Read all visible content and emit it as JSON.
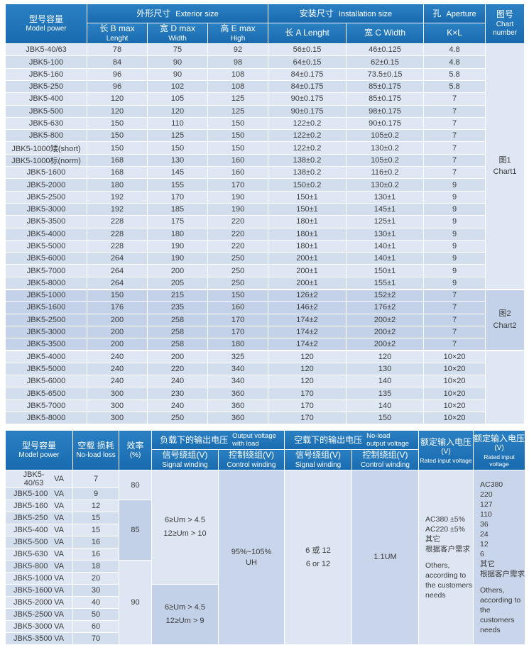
{
  "colors": {
    "header_blue_top": "#2a80c3",
    "header_blue_bot": "#196aae",
    "row_light": "#dee7f3",
    "row_alt": "#d2deee",
    "group2_row": "#c3d2e9",
    "block_light": "#dde6f2",
    "block_mid": "#c8d5ea",
    "block_dark": "#c2d1e8",
    "text_dark": "#3b3b3b"
  },
  "top_table": {
    "header": {
      "model_zh": "型号容量",
      "model_en": "Model power",
      "exterior_zh": "外形尺寸",
      "exterior_en": "Exterior size",
      "install_zh": "安装尺寸",
      "install_en": "Installation size",
      "aperture_zh": "孔",
      "aperture_en": "Aperture",
      "chart_zh": "图号",
      "chart_en": "Chart number",
      "col_b_zh": "长  B max",
      "col_b_en": "Lenght",
      "col_d_zh": "宽  D max",
      "col_d_en": "Width",
      "col_e_zh": "高  E max",
      "col_e_en": "High",
      "col_a": "长  A  Lenght",
      "col_c": "宽  C  Width",
      "col_kl": "K×L"
    },
    "groups": [
      {
        "chart_zh": "图1",
        "chart_en": "Chart1",
        "rows": [
          {
            "model": "JBK5-40/63",
            "b": "78",
            "d": "75",
            "e": "92",
            "a": "56±0.15",
            "c": "46±0.125",
            "kl": "4.8"
          },
          {
            "model": "JBK5-100",
            "b": "84",
            "d": "90",
            "e": "98",
            "a": "64±0.15",
            "c": "62±0.15",
            "kl": "4.8"
          },
          {
            "model": "JBK5-160",
            "b": "96",
            "d": "90",
            "e": "108",
            "a": "84±0.175",
            "c": "73.5±0.15",
            "kl": "5.8"
          },
          {
            "model": "JBK5-250",
            "b": "96",
            "d": "102",
            "e": "108",
            "a": "84±0.175",
            "c": "85±0.175",
            "kl": "5.8"
          },
          {
            "model": "JBK5-400",
            "b": "120",
            "d": "105",
            "e": "125",
            "a": "90±0.175",
            "c": "85±0.175",
            "kl": "7"
          },
          {
            "model": "JBK5-500",
            "b": "120",
            "d": "120",
            "e": "125",
            "a": "90±0.175",
            "c": "98±0.175",
            "kl": "7"
          },
          {
            "model": "JBK5-630",
            "b": "150",
            "d": "110",
            "e": "150",
            "a": "122±0.2",
            "c": "90±0.175",
            "kl": "7"
          },
          {
            "model": "JBK5-800",
            "b": "150",
            "d": "125",
            "e": "150",
            "a": "122±0.2",
            "c": "105±0.2",
            "kl": "7"
          },
          {
            "model": "JBK5-1000矮(short)",
            "b": "150",
            "d": "150",
            "e": "150",
            "a": "122±0.2",
            "c": "130±0.2",
            "kl": "7"
          },
          {
            "model": "JBK5-1000标(norm)",
            "b": "168",
            "d": "130",
            "e": "160",
            "a": "138±0.2",
            "c": "105±0.2",
            "kl": "7"
          },
          {
            "model": "JBK5-1600",
            "b": "168",
            "d": "145",
            "e": "160",
            "a": "138±0.2",
            "c": "116±0.2",
            "kl": "7"
          },
          {
            "model": "JBK5-2000",
            "b": "180",
            "d": "155",
            "e": "170",
            "a": "150±0.2",
            "c": "130±0.2",
            "kl": "9"
          },
          {
            "model": "JBK5-2500",
            "b": "192",
            "d": "170",
            "e": "190",
            "a": "150±1",
            "c": "130±1",
            "kl": "9"
          },
          {
            "model": "JBK5-3000",
            "b": "192",
            "d": "185",
            "e": "190",
            "a": "150±1",
            "c": "145±1",
            "kl": "9"
          },
          {
            "model": "JBK5-3500",
            "b": "228",
            "d": "175",
            "e": "220",
            "a": "180±1",
            "c": "125±1",
            "kl": "9"
          },
          {
            "model": "JBK5-4000",
            "b": "228",
            "d": "180",
            "e": "220",
            "a": "180±1",
            "c": "130±1",
            "kl": "9"
          },
          {
            "model": "JBK5-5000",
            "b": "228",
            "d": "190",
            "e": "220",
            "a": "180±1",
            "c": "140±1",
            "kl": "9"
          },
          {
            "model": "JBK5-6000",
            "b": "264",
            "d": "190",
            "e": "250",
            "a": "200±1",
            "c": "140±1",
            "kl": "9"
          },
          {
            "model": "JBK5-7000",
            "b": "264",
            "d": "200",
            "e": "250",
            "a": "200±1",
            "c": "150±1",
            "kl": "9"
          },
          {
            "model": "JBK5-8000",
            "b": "264",
            "d": "205",
            "e": "250",
            "a": "200±1",
            "c": "155±1",
            "kl": "9"
          }
        ]
      },
      {
        "chart_zh": "图2",
        "chart_en": "Chart2",
        "rows": [
          {
            "model": "JBK5-1000",
            "b": "150",
            "d": "215",
            "e": "150",
            "a": "126±2",
            "c": "152±2",
            "kl": "7"
          },
          {
            "model": "JBK5-1600",
            "b": "176",
            "d": "235",
            "e": "160",
            "a": "146±2",
            "c": "176±2",
            "kl": "7"
          },
          {
            "model": "JBK5-2500",
            "b": "200",
            "d": "258",
            "e": "170",
            "a": "174±2",
            "c": "200±2",
            "kl": "7"
          },
          {
            "model": "JBK5-3000",
            "b": "200",
            "d": "258",
            "e": "170",
            "a": "174±2",
            "c": "200±2",
            "kl": "7"
          },
          {
            "model": "JBK5-3500",
            "b": "200",
            "d": "258",
            "e": "180",
            "a": "174±2",
            "c": "200±2",
            "kl": "7"
          }
        ]
      },
      {
        "chart_zh": "",
        "chart_en": "",
        "rows": [
          {
            "model": "JBK5-4000",
            "b": "240",
            "d": "200",
            "e": "325",
            "a": "120",
            "c": "120",
            "kl": "10×20"
          },
          {
            "model": "JBK5-5000",
            "b": "240",
            "d": "220",
            "e": "340",
            "a": "120",
            "c": "130",
            "kl": "10×20"
          },
          {
            "model": "JBK5-6000",
            "b": "240",
            "d": "240",
            "e": "340",
            "a": "120",
            "c": "140",
            "kl": "10×20"
          },
          {
            "model": "JBK5-6500",
            "b": "300",
            "d": "230",
            "e": "360",
            "a": "170",
            "c": "135",
            "kl": "10×20"
          },
          {
            "model": "JBK5-7000",
            "b": "300",
            "d": "240",
            "e": "360",
            "a": "170",
            "c": "140",
            "kl": "10×20"
          },
          {
            "model": "JBK5-8000",
            "b": "300",
            "d": "250",
            "e": "360",
            "a": "170",
            "c": "150",
            "kl": "10×20"
          }
        ]
      }
    ]
  },
  "bottom_table": {
    "header": {
      "model_zh": "型号容量",
      "model_en": "Model power",
      "noload_zh": "空载 损耗",
      "noload_en": "No-load loss",
      "eff_zh": "效率",
      "eff_en": "(%)",
      "load_out_zh": "负载下的输出电压",
      "load_out_en1": "Output voltage",
      "load_out_en2": "with load",
      "noload_out_zh": "空载下的输出电压",
      "noload_out_en1": "No-load",
      "noload_out_en2": "output voltage",
      "signal_zh": "信号绕组(V)",
      "signal_en": "Signal winding",
      "control_zh": "控制绕组(V)",
      "control_en": "Control winding",
      "rated_zh": "额定输入电压",
      "rated_v": "(V)",
      "rated_en": "Rated input voltage"
    },
    "rows": [
      {
        "model": "JBK5-40/63",
        "unit": "VA",
        "loss": "7"
      },
      {
        "model": "JBK5-100",
        "unit": "VA",
        "loss": "9"
      },
      {
        "model": "JBK5-160",
        "unit": "VA",
        "loss": "12"
      },
      {
        "model": "JBK5-250",
        "unit": "VA",
        "loss": "15"
      },
      {
        "model": "JBK5-400",
        "unit": "VA",
        "loss": "15"
      },
      {
        "model": "JBK5-500",
        "unit": "VA",
        "loss": "16"
      },
      {
        "model": "JBK5-630",
        "unit": "VA",
        "loss": "16"
      },
      {
        "model": "JBK5-800",
        "unit": "VA",
        "loss": "18"
      },
      {
        "model": "JBK5-1000",
        "unit": "VA",
        "loss": "20"
      },
      {
        "model": "JBK5-1600",
        "unit": "VA",
        "loss": "30"
      },
      {
        "model": "JBK5-2000",
        "unit": "VA",
        "loss": "40"
      },
      {
        "model": "JBK5-2500",
        "unit": "VA",
        "loss": "50"
      },
      {
        "model": "JBK5-3000",
        "unit": "VA",
        "loss": "60"
      },
      {
        "model": "JBK5-3500",
        "unit": "VA",
        "loss": "70"
      }
    ],
    "efficiency_blocks": [
      {
        "value": "80",
        "span": 2
      },
      {
        "value": "85",
        "span": 5
      },
      {
        "value": "90",
        "span": 7
      }
    ],
    "signal_load_blocks": [
      {
        "lines": [
          "6≥Um > 4.5",
          "12≥Um > 10"
        ],
        "span": 9
      },
      {
        "lines": [
          "6≥Um > 4.5",
          "12≥Um > 9"
        ],
        "span": 5
      }
    ],
    "control_load_block": {
      "lines": [
        "95%~105%",
        "UH"
      ],
      "span": 14
    },
    "signal_noload_block": {
      "lines": [
        "6  或  12",
        "6  or  12"
      ],
      "span": 14
    },
    "control_noload_block": {
      "lines": [
        "1.1UM"
      ],
      "span": 14
    },
    "rated_input_blocks": [
      {
        "lines": [
          "AC380 ±5%",
          "AC220 ±5%",
          "其它",
          "根据客户需求",
          "",
          "Others,",
          "according to",
          "the customers",
          "needs"
        ],
        "span": 14
      },
      {
        "lines": [
          "AC380",
          "220",
          "127",
          "110",
          "36",
          "24",
          "12",
          "6",
          "其它",
          "根据客户需求",
          "",
          "Others,",
          "according to",
          "the customers",
          "needs"
        ],
        "span": 14
      }
    ]
  }
}
